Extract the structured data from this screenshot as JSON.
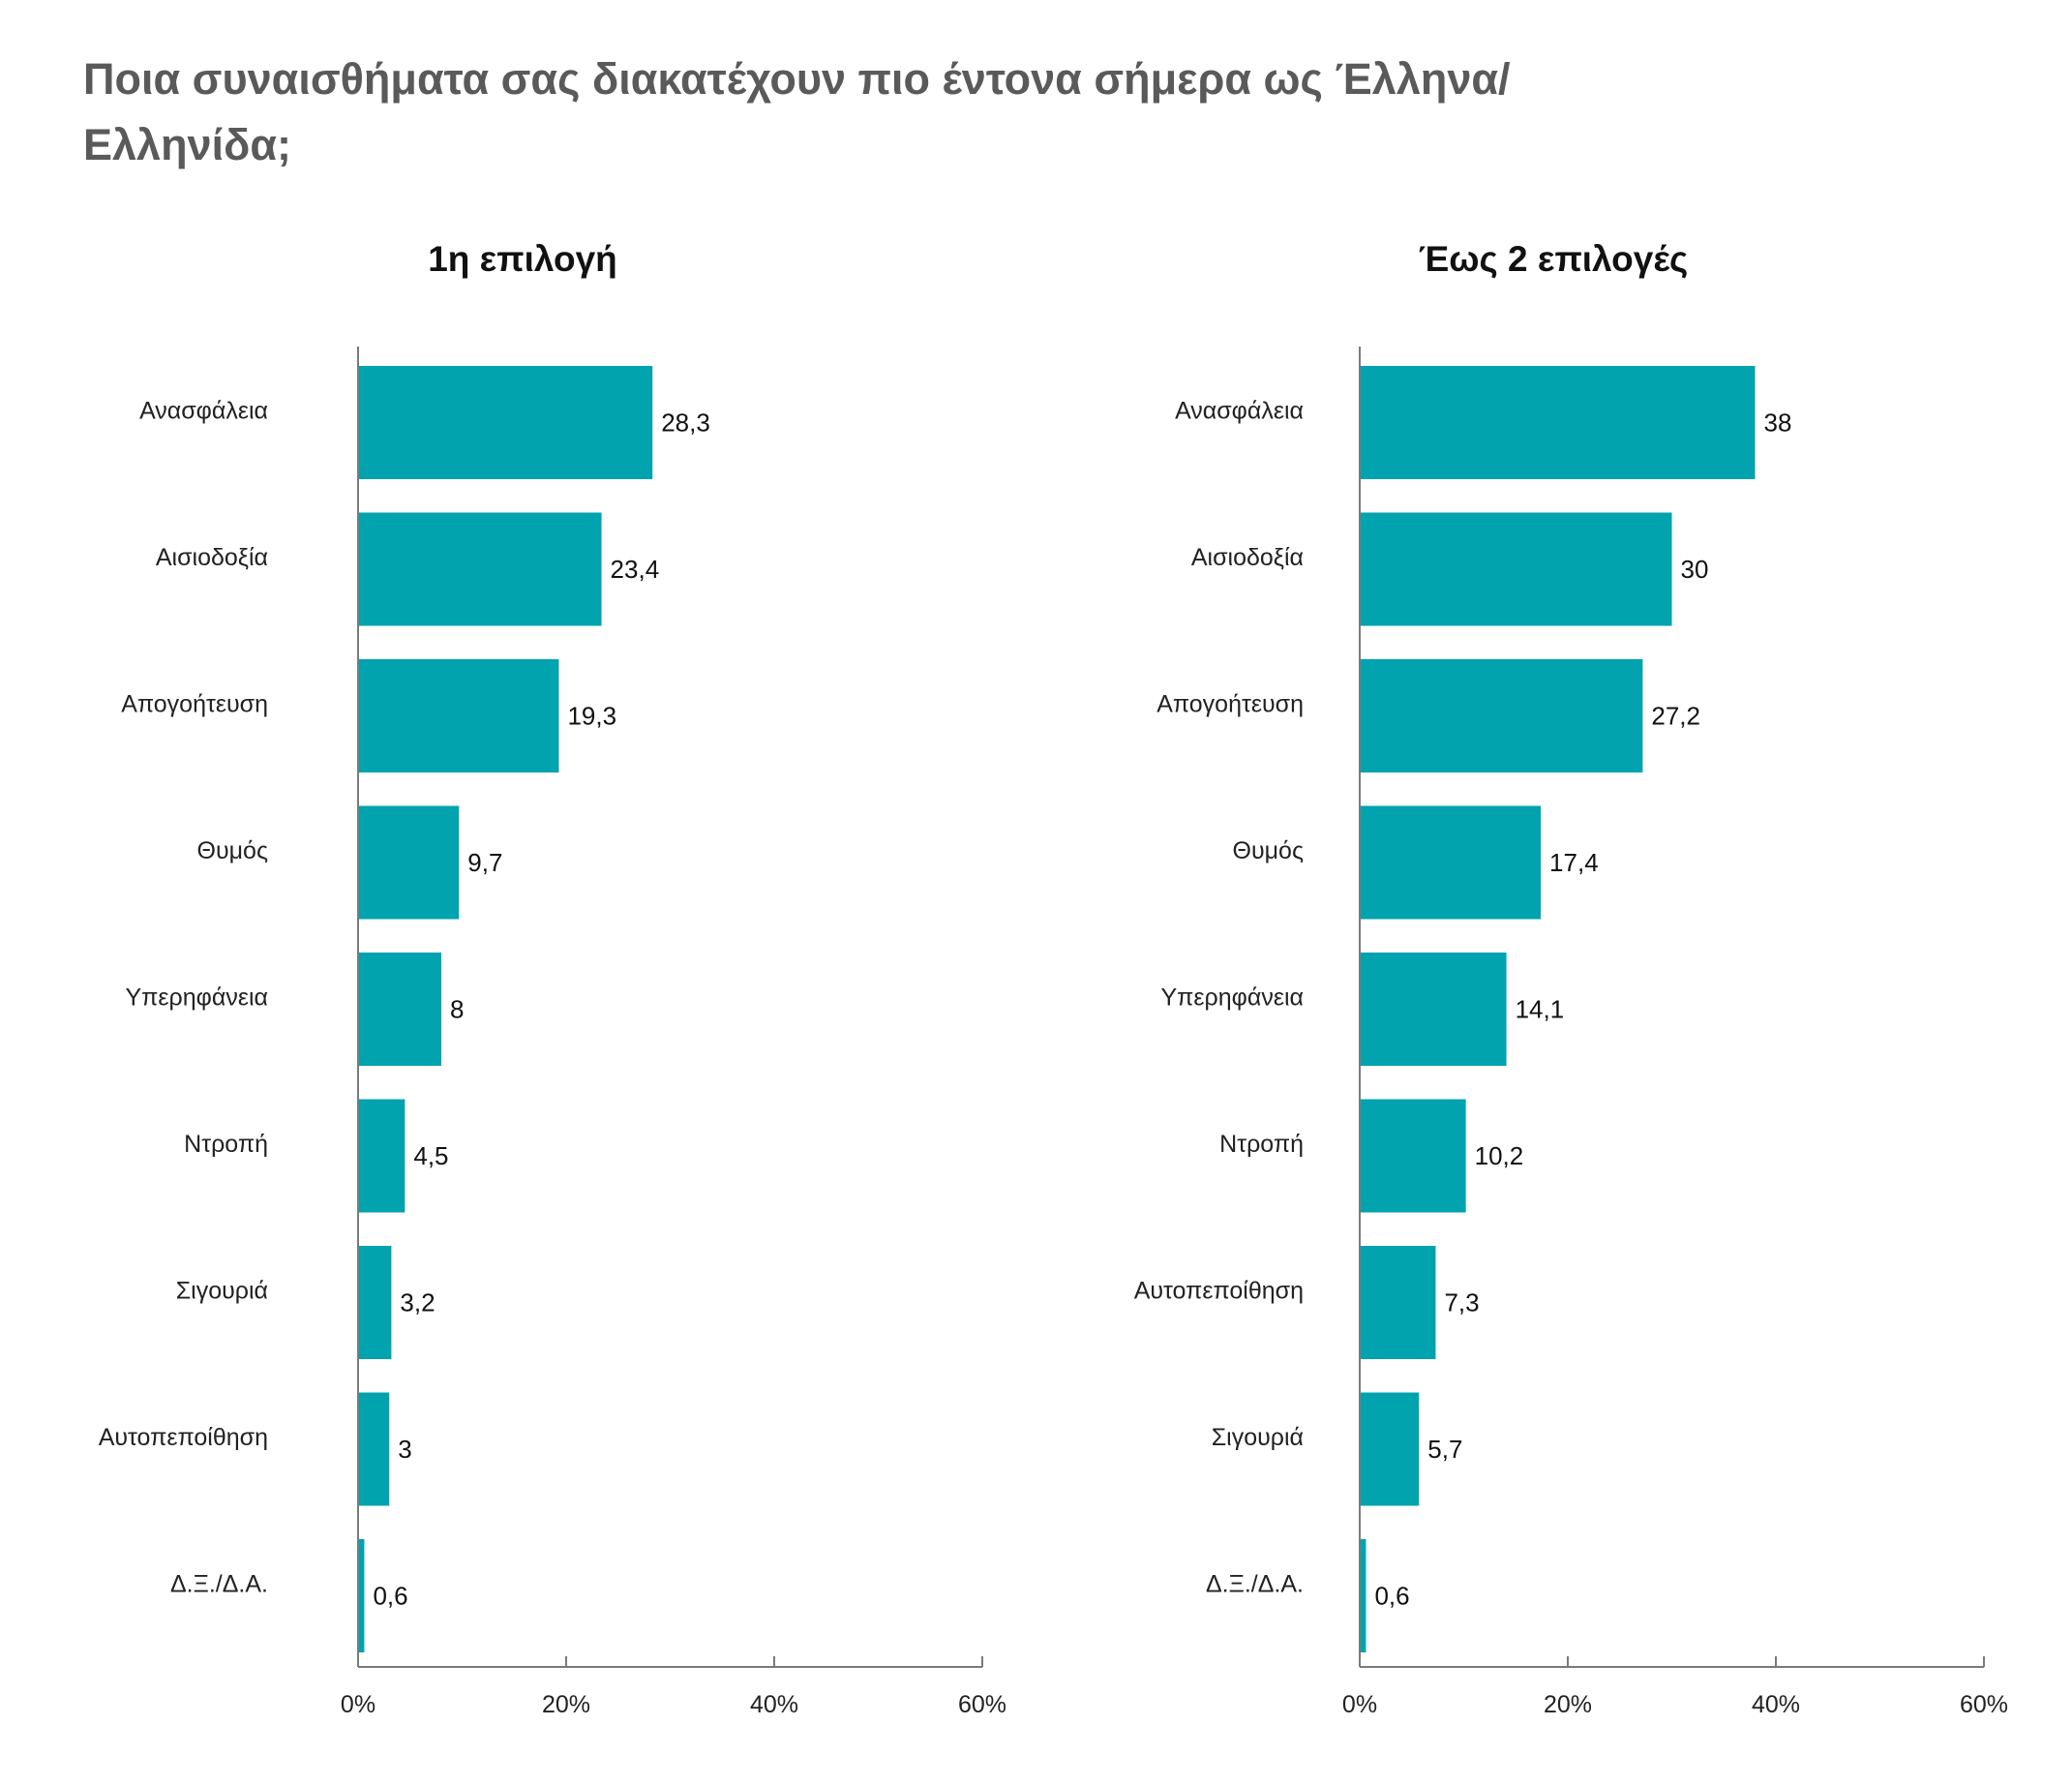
{
  "title": {
    "line1": "Ποια συναισθήματα σας διακατέχουν πιο έντονα σήμερα ως Έλληνα/",
    "line2": "Ελληνίδα;"
  },
  "colors": {
    "bar": "#00a3ae",
    "axis": "#7a7a7a",
    "title": "#5a5a5a"
  },
  "chart_data": [
    {
      "type": "bar",
      "orientation": "horizontal",
      "title": "1η επιλογή",
      "categories": [
        "Ανασφάλεια",
        "Αισιοδοξία",
        "Απογοήτευση",
        "Θυμός",
        "Υπερηφάνεια",
        "Ντροπή",
        "Σιγουριά",
        "Αυτοπεποίθηση",
        "Δ.Ξ./Δ.Α."
      ],
      "values": [
        28.3,
        23.4,
        19.3,
        9.7,
        8,
        4.5,
        3.2,
        3,
        0.6
      ],
      "value_labels": [
        "28,3",
        "23,4",
        "19,3",
        "9,7",
        "8",
        "4,5",
        "3,2",
        "3",
        "0,6"
      ],
      "xlim": [
        0,
        60
      ],
      "xticks": [
        "0%",
        "20%",
        "40%",
        "60%"
      ],
      "grid": false,
      "legend": "none"
    },
    {
      "type": "bar",
      "orientation": "horizontal",
      "title": "Έως 2 επιλογές",
      "categories": [
        "Ανασφάλεια",
        "Αισιοδοξία",
        "Απογοήτευση",
        "Θυμός",
        "Υπερηφάνεια",
        "Ντροπή",
        "Αυτοπεποίθηση",
        "Σιγουριά",
        "Δ.Ξ./Δ.Α."
      ],
      "values": [
        38,
        30,
        27.2,
        17.4,
        14.1,
        10.2,
        7.3,
        5.7,
        0.6
      ],
      "value_labels": [
        "38",
        "30",
        "27,2",
        "17,4",
        "14,1",
        "10,2",
        "7,3",
        "5,7",
        "0,6"
      ],
      "xlim": [
        0,
        60
      ],
      "xticks": [
        "0%",
        "20%",
        "40%",
        "60%"
      ],
      "grid": false,
      "legend": "none"
    }
  ]
}
